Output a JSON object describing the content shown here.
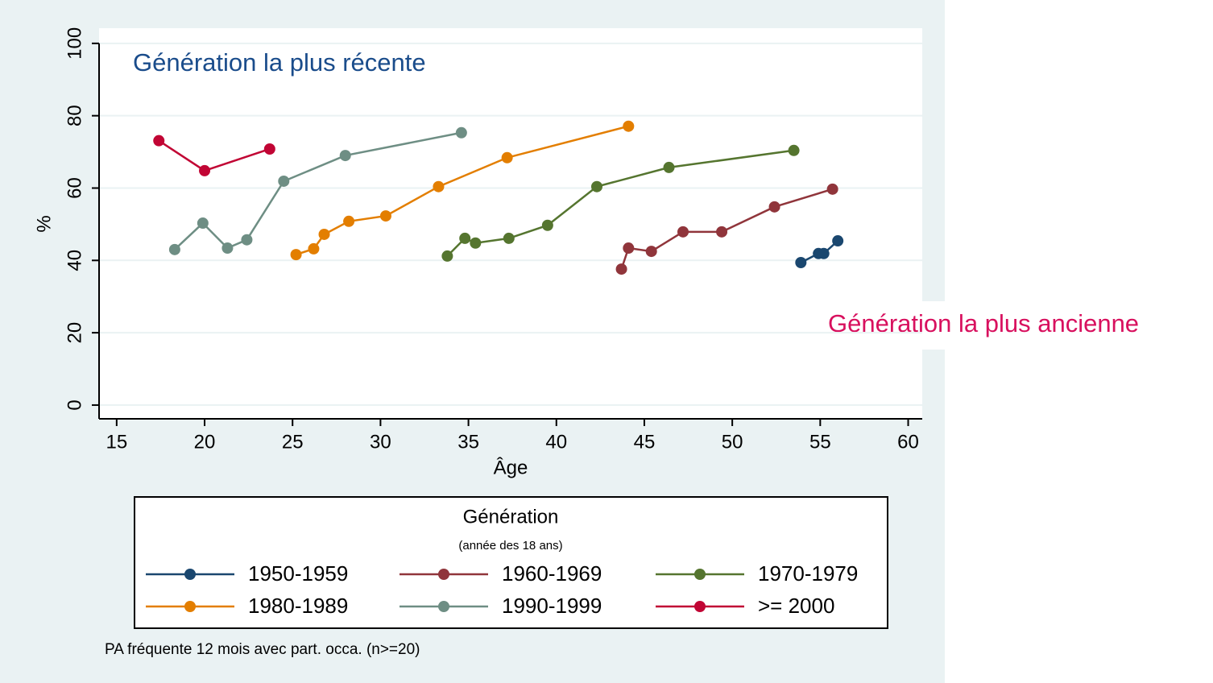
{
  "chart_data": {
    "type": "line",
    "y_label": "%",
    "x_label": "Âge",
    "legend_title": "Génération",
    "legend_subtitle": "(année des 18 ans)",
    "annotations": [
      "Génération la plus récente",
      "Génération la plus ancienne"
    ],
    "note": "PA fréquente 12 mois avec part. occa. (n>=20)",
    "xlim": [
      14,
      60.8
    ],
    "xticks": [
      15,
      20,
      25,
      30,
      35,
      40,
      45,
      50,
      55,
      60
    ],
    "ylim": [
      -3.8,
      104.2
    ],
    "yticks": [
      0,
      20,
      40,
      60,
      80,
      100
    ],
    "grid": true,
    "series": [
      {
        "name": "1950-1959",
        "color": "#1a476f",
        "x": [
          53.9,
          54.9,
          55.2,
          56.0
        ],
        "values": [
          39.4,
          41.9,
          41.9,
          45.4
        ]
      },
      {
        "name": "1960-1969",
        "color": "#90353b",
        "x": [
          43.7,
          44.1,
          45.4,
          47.2,
          49.4,
          52.4,
          55.7
        ],
        "values": [
          37.6,
          43.4,
          42.5,
          47.9,
          47.9,
          54.8,
          59.7
        ]
      },
      {
        "name": "1970-1979",
        "color": "#55752f",
        "x": [
          33.8,
          34.8,
          35.4,
          37.3,
          39.5,
          42.3,
          46.4,
          53.5
        ],
        "values": [
          41.2,
          46.1,
          44.8,
          46.1,
          49.7,
          60.4,
          65.7,
          70.4
        ]
      },
      {
        "name": "1980-1989",
        "color": "#e37e00",
        "x": [
          25.2,
          26.2,
          26.8,
          28.2,
          30.3,
          33.3,
          37.2,
          44.1
        ],
        "values": [
          41.6,
          43.2,
          47.2,
          50.8,
          52.3,
          60.4,
          68.4,
          77.1
        ]
      },
      {
        "name": "1990-1999",
        "color": "#6e8e84",
        "x": [
          18.3,
          19.9,
          21.3,
          22.4,
          24.5,
          28.0,
          34.6
        ],
        "values": [
          43.0,
          50.3,
          43.4,
          45.7,
          61.9,
          69.0,
          75.3
        ]
      },
      {
        "name": ">= 2000",
        "color": "#c10534",
        "x": [
          17.4,
          20.0,
          23.7
        ],
        "values": [
          73.1,
          64.8,
          70.8
        ]
      }
    ]
  }
}
